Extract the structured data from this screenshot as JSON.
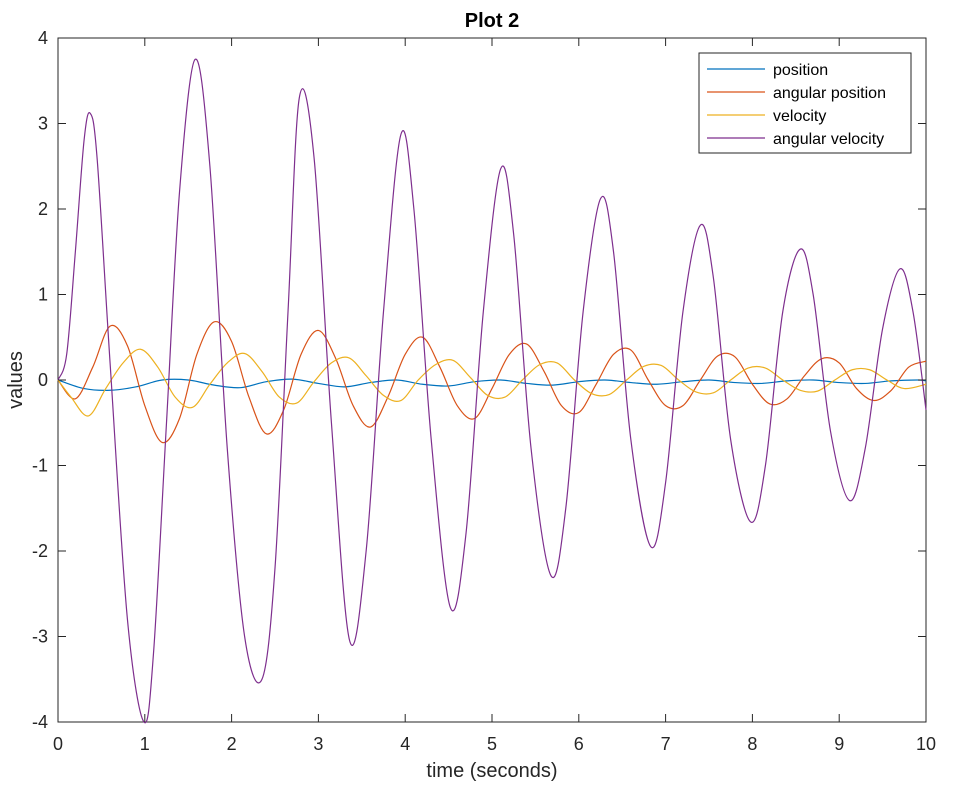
{
  "chart_data": {
    "type": "line",
    "title": "Plot 2",
    "xlabel": "time (seconds)",
    "ylabel": "values",
    "xlim": [
      0,
      10
    ],
    "ylim": [
      -4,
      4
    ],
    "xticks": [
      0,
      1,
      2,
      3,
      4,
      5,
      6,
      7,
      8,
      9,
      10
    ],
    "yticks": [
      -4,
      -3,
      -2,
      -1,
      0,
      1,
      2,
      3,
      4
    ],
    "grid": false,
    "legend_position": "top-right",
    "series": [
      {
        "name": "position",
        "color": "#0072BD",
        "x": [
          0,
          0.3,
          0.6,
          0.9,
          1.2,
          1.5,
          1.8,
          2.1,
          2.4,
          2.7,
          3.0,
          3.3,
          3.6,
          3.9,
          4.2,
          4.5,
          4.8,
          5.1,
          5.4,
          5.7,
          6.0,
          6.3,
          6.6,
          6.9,
          7.2,
          7.5,
          7.8,
          8.1,
          8.4,
          8.7,
          9.0,
          9.3,
          9.6,
          9.9,
          10
        ],
        "y": [
          0,
          -0.1,
          -0.12,
          -0.08,
          0.0,
          0.0,
          -0.06,
          -0.09,
          -0.02,
          0.01,
          -0.04,
          -0.08,
          -0.03,
          0.0,
          -0.05,
          -0.07,
          -0.02,
          0.0,
          -0.04,
          -0.06,
          -0.02,
          0.0,
          -0.03,
          -0.05,
          -0.02,
          0.0,
          -0.03,
          -0.04,
          -0.01,
          0.0,
          -0.03,
          -0.04,
          -0.01,
          0.0,
          -0.01
        ]
      },
      {
        "name": "angular position",
        "color": "#D95319",
        "x": [
          0,
          0.2,
          0.4,
          0.6,
          0.8,
          1.0,
          1.2,
          1.4,
          1.6,
          1.8,
          2.0,
          2.2,
          2.4,
          2.6,
          2.8,
          3.0,
          3.2,
          3.4,
          3.6,
          3.8,
          4.0,
          4.2,
          4.4,
          4.6,
          4.8,
          5.0,
          5.2,
          5.4,
          5.6,
          5.8,
          6.0,
          6.2,
          6.4,
          6.6,
          6.8,
          7.0,
          7.2,
          7.4,
          7.6,
          7.8,
          8.0,
          8.2,
          8.4,
          8.6,
          8.8,
          9.0,
          9.2,
          9.4,
          9.6,
          9.8,
          10
        ],
        "y": [
          0,
          -0.22,
          0.15,
          0.63,
          0.4,
          -0.3,
          -0.73,
          -0.45,
          0.3,
          0.68,
          0.45,
          -0.2,
          -0.63,
          -0.35,
          0.3,
          0.58,
          0.25,
          -0.3,
          -0.55,
          -0.2,
          0.3,
          0.5,
          0.15,
          -0.3,
          -0.45,
          -0.1,
          0.3,
          0.42,
          0.1,
          -0.3,
          -0.38,
          -0.05,
          0.3,
          0.35,
          0.0,
          -0.3,
          -0.3,
          0.0,
          0.28,
          0.27,
          -0.05,
          -0.28,
          -0.22,
          0.05,
          0.25,
          0.2,
          -0.1,
          -0.24,
          -0.12,
          0.15,
          0.22
        ]
      },
      {
        "name": "velocity",
        "color": "#EDB120",
        "x": [
          0,
          0.15,
          0.35,
          0.55,
          0.75,
          0.95,
          1.15,
          1.35,
          1.55,
          1.75,
          1.95,
          2.15,
          2.35,
          2.55,
          2.75,
          2.95,
          3.15,
          3.35,
          3.55,
          3.75,
          3.95,
          4.15,
          4.35,
          4.55,
          4.75,
          4.95,
          5.15,
          5.35,
          5.55,
          5.75,
          5.95,
          6.15,
          6.35,
          6.55,
          6.75,
          6.95,
          7.15,
          7.35,
          7.55,
          7.75,
          7.95,
          8.15,
          8.35,
          8.55,
          8.75,
          8.95,
          9.15,
          9.35,
          9.55,
          9.75,
          10
        ],
        "y": [
          0,
          -0.2,
          -0.42,
          -0.1,
          0.2,
          0.36,
          0.15,
          -0.2,
          -0.32,
          -0.05,
          0.2,
          0.31,
          0.1,
          -0.2,
          -0.27,
          -0.02,
          0.2,
          0.26,
          0.05,
          -0.18,
          -0.24,
          0.0,
          0.18,
          0.23,
          0.03,
          -0.18,
          -0.2,
          0.0,
          0.18,
          0.2,
          0.0,
          -0.16,
          -0.17,
          0.0,
          0.16,
          0.17,
          0.0,
          -0.14,
          -0.15,
          0.0,
          0.14,
          0.14,
          0.0,
          -0.12,
          -0.13,
          0.0,
          0.12,
          0.12,
          0.0,
          -0.1,
          -0.05
        ]
      },
      {
        "name": "angular velocity",
        "color": "#7E2F8E",
        "x": [
          0,
          0.1,
          0.2,
          0.3,
          0.37,
          0.45,
          0.6,
          0.8,
          0.99,
          1.1,
          1.25,
          1.4,
          1.58,
          1.75,
          1.95,
          2.15,
          2.35,
          2.5,
          2.65,
          2.78,
          2.95,
          3.15,
          3.36,
          3.55,
          3.75,
          3.95,
          4.1,
          4.3,
          4.52,
          4.7,
          4.9,
          5.1,
          5.25,
          5.45,
          5.68,
          5.85,
          6.05,
          6.25,
          6.4,
          6.6,
          6.83,
          7.0,
          7.2,
          7.4,
          7.55,
          7.75,
          7.98,
          8.15,
          8.35,
          8.55,
          8.7,
          8.9,
          9.12,
          9.3,
          9.5,
          9.7,
          9.85,
          10
        ],
        "y": [
          0,
          0.3,
          1.5,
          2.8,
          3.12,
          2.6,
          0.2,
          -2.8,
          -4.0,
          -3.2,
          -0.5,
          2.2,
          3.75,
          2.5,
          -0.8,
          -3.0,
          -3.5,
          -2.2,
          0.8,
          3.3,
          2.6,
          -0.5,
          -3.05,
          -2.0,
          0.8,
          2.87,
          2.0,
          -0.7,
          -2.66,
          -1.8,
          0.8,
          2.47,
          1.7,
          -0.8,
          -2.29,
          -1.5,
          0.8,
          2.12,
          1.5,
          -0.7,
          -1.95,
          -1.2,
          0.8,
          1.81,
          1.2,
          -0.7,
          -1.66,
          -1.0,
          0.8,
          1.53,
          1.0,
          -0.6,
          -1.41,
          -0.8,
          0.6,
          1.3,
          0.8,
          -0.35
        ]
      }
    ]
  }
}
